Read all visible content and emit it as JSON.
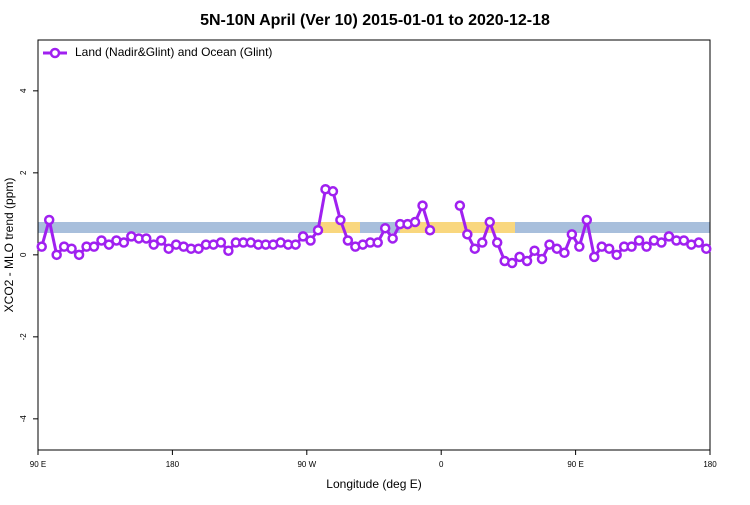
{
  "chart_data": {
    "type": "line",
    "title": "5N-10N April (Ver 10)   2015-01-01 to 2020-12-18",
    "x_label": "Longitude (deg E)",
    "y_label": "XCO2 - MLO trend (ppm)",
    "x": [
      92.5,
      97.5,
      102.5,
      107.5,
      112.5,
      117.5,
      122.5,
      127.5,
      132.5,
      137.5,
      142.5,
      147.5,
      152.5,
      157.5,
      162.5,
      167.5,
      172.5,
      177.5,
      182.5,
      187.5,
      192.5,
      197.5,
      202.5,
      207.5,
      212.5,
      217.5,
      222.5,
      227.5,
      232.5,
      237.5,
      242.5,
      247.5,
      252.5,
      257.5,
      262.5,
      267.5,
      272.5,
      277.5,
      282.5,
      287.5,
      292.5,
      297.5,
      302.5,
      307.5,
      312.5,
      317.5,
      322.5,
      327.5,
      332.5,
      337.5,
      342.5,
      347.5,
      352.5,
      357.5,
      362.5,
      367.5,
      372.5,
      377.5,
      382.5,
      387.5,
      392.5,
      397.5,
      402.5,
      407.5,
      412.5,
      417.5,
      422.5,
      427.5,
      432.5,
      437.5,
      442.5,
      447.5,
      452.5,
      457.5,
      462.5,
      467.5,
      472.5,
      477.5,
      482.5,
      487.5,
      492.5,
      497.5,
      502.5,
      507.5,
      512.5,
      517.5,
      522.5,
      527.5,
      532.5,
      537.5
    ],
    "series": [
      {
        "name": "Land (Nadir&Glint) and Ocean (Glint)",
        "color": "#a020f0",
        "values": [
          0.2,
          0.85,
          0.0,
          0.2,
          0.15,
          0.0,
          0.2,
          0.2,
          0.35,
          0.25,
          0.35,
          0.3,
          0.45,
          0.4,
          0.4,
          0.25,
          0.35,
          0.15,
          0.25,
          0.2,
          0.15,
          0.15,
          0.25,
          0.25,
          0.3,
          0.1,
          0.3,
          0.3,
          0.3,
          0.25,
          0.25,
          0.25,
          0.3,
          0.25,
          0.25,
          0.45,
          0.35,
          0.6,
          1.6,
          1.55,
          0.85,
          0.35,
          0.2,
          0.25,
          0.3,
          0.3,
          0.65,
          0.4,
          0.75,
          0.75,
          0.8,
          1.2,
          0.6,
          null,
          null,
          null,
          1.2,
          0.5,
          0.15,
          0.3,
          0.8,
          0.3,
          -0.15,
          -0.2,
          -0.05,
          -0.15,
          0.1,
          -0.1,
          0.25,
          0.15,
          0.05,
          0.5,
          0.2,
          0.85,
          -0.05,
          0.2,
          0.15,
          0.0,
          0.2,
          0.2,
          0.35,
          0.2,
          0.35,
          0.3,
          0.45,
          0.35,
          0.35,
          0.25,
          0.3,
          0.15
        ]
      }
    ],
    "xlim": [
      90,
      540
    ],
    "xticks": [
      {
        "value": 90,
        "label": "90 E"
      },
      180,
      {
        "value": 270,
        "label": "90 W"
      },
      {
        "value": 360,
        "label": "0"
      },
      {
        "value": 450,
        "label": "90 E"
      },
      {
        "value": 540,
        "label": "180"
      }
    ],
    "ylim": [
      -4.76,
      5.24
    ],
    "yticks": [
      -4,
      -2,
      0,
      2,
      4
    ],
    "legend": "top-left"
  }
}
